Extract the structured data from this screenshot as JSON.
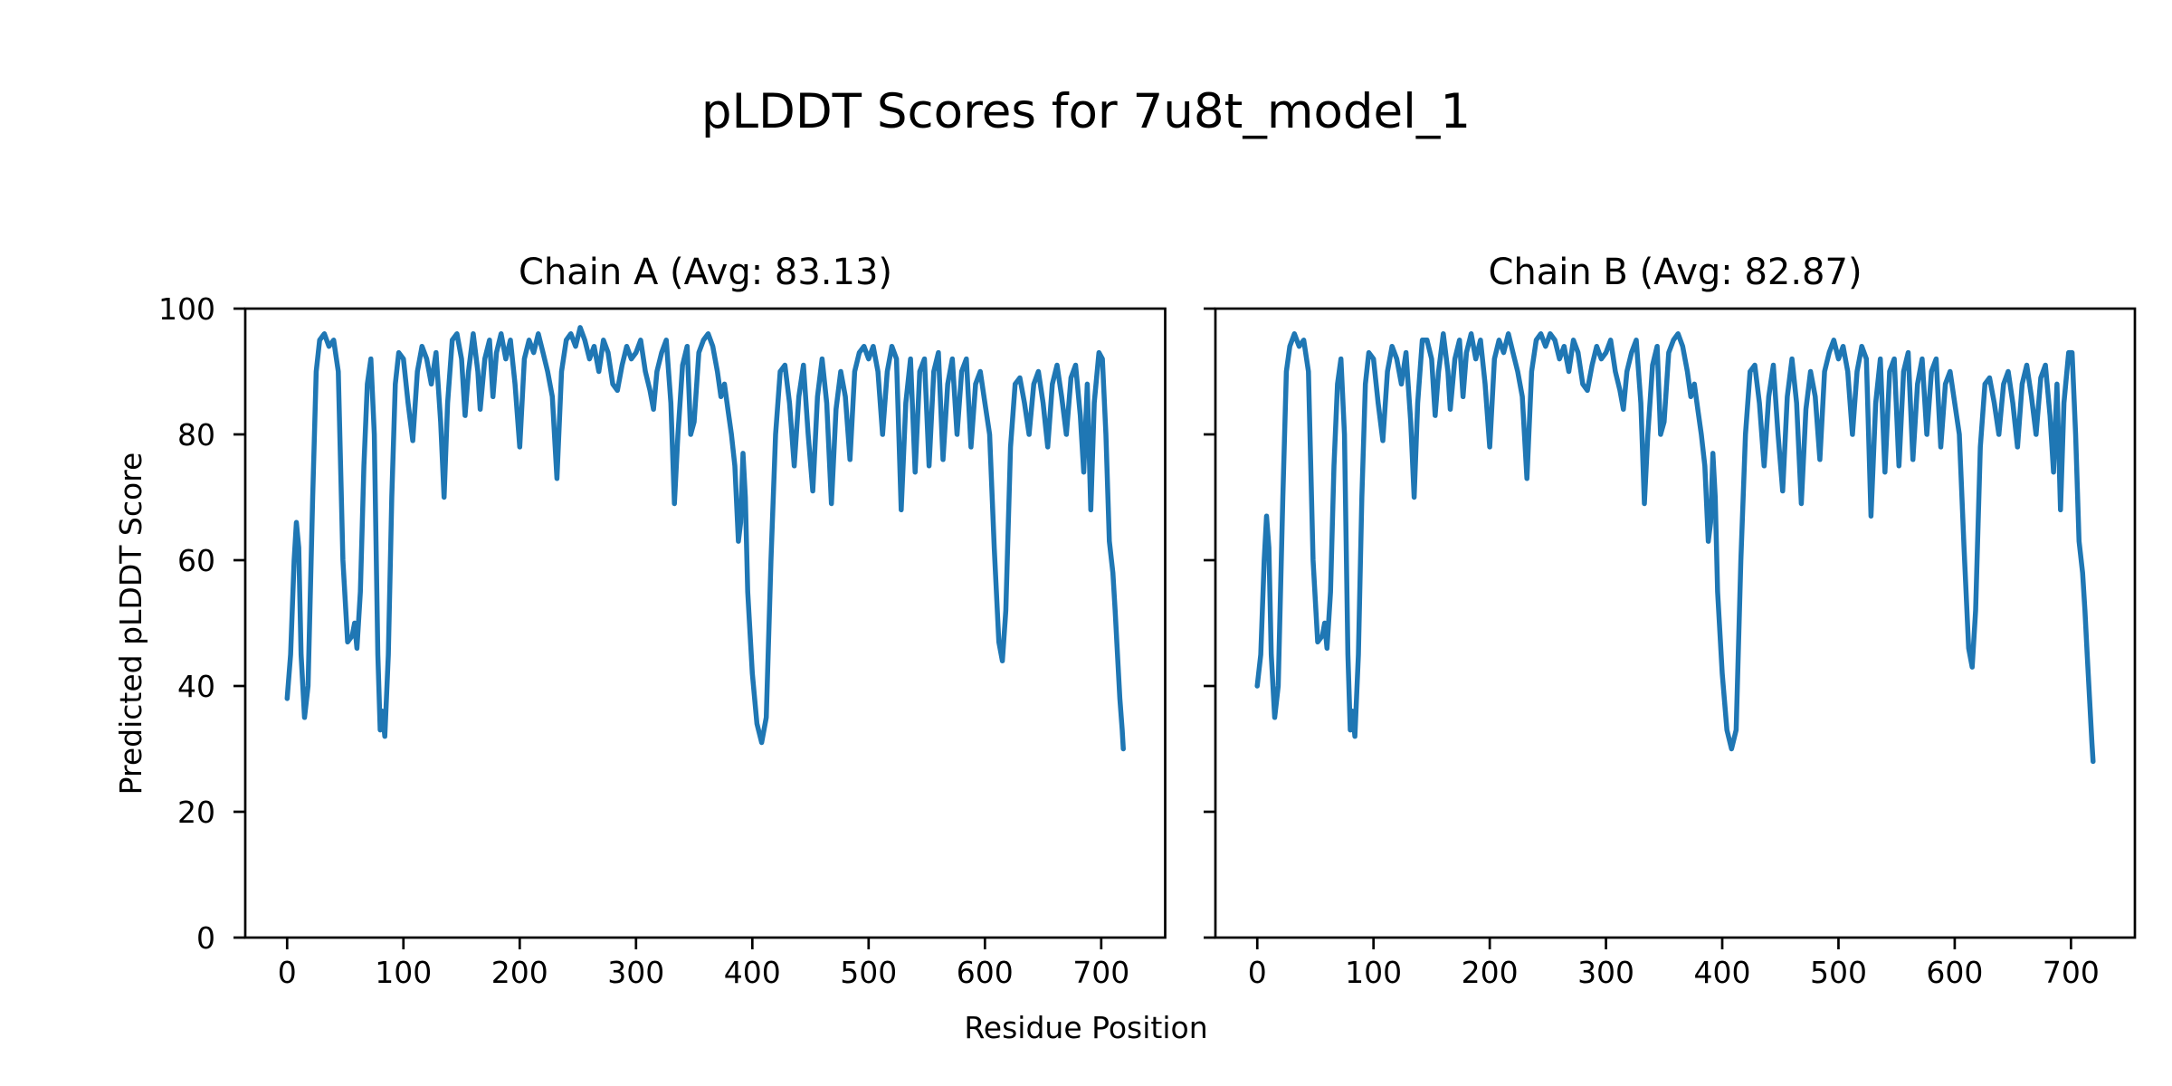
{
  "figure": {
    "title": "pLDDT Scores for 7u8t_model_1",
    "xlabel": "Residue Position",
    "ylabel": "Predicted pLDDT Score",
    "background_color": "#ffffff",
    "text_color": "#000000",
    "spine_color": "#000000"
  },
  "chart_data": [
    {
      "type": "line",
      "title": "Chain A (Avg: 83.13)",
      "chain": "A",
      "avg": 83.13,
      "xlabel": "Residue Position",
      "ylabel": "Predicted pLDDT Score",
      "xlim": [
        -36,
        755
      ],
      "ylim": [
        0,
        100
      ],
      "xticks": [
        0,
        100,
        200,
        300,
        400,
        500,
        600,
        700
      ],
      "yticks": [
        0,
        20,
        40,
        60,
        80,
        100
      ],
      "show_ytick_labels": true,
      "grid": false,
      "legend": "none",
      "line_color": "#1f77b4",
      "series": [
        {
          "name": "pLDDT",
          "x": [
            0,
            3,
            6,
            8,
            10,
            12,
            15,
            18,
            22,
            25,
            28,
            32,
            36,
            40,
            44,
            48,
            52,
            56,
            58,
            60,
            63,
            66,
            69,
            72,
            75,
            78,
            80,
            82,
            84,
            87,
            90,
            93,
            96,
            100,
            104,
            108,
            112,
            116,
            120,
            124,
            128,
            132,
            135,
            138,
            142,
            146,
            150,
            153,
            156,
            160,
            164,
            166,
            170,
            174,
            177,
            180,
            184,
            188,
            192,
            196,
            200,
            204,
            208,
            212,
            216,
            220,
            224,
            228,
            232,
            236,
            240,
            244,
            248,
            252,
            256,
            260,
            264,
            268,
            272,
            276,
            280,
            284,
            288,
            292,
            296,
            300,
            304,
            308,
            312,
            315,
            318,
            322,
            326,
            330,
            333,
            336,
            340,
            344,
            347,
            350,
            354,
            358,
            362,
            366,
            370,
            373,
            376,
            379,
            382,
            385,
            388,
            390,
            392,
            394,
            396,
            400,
            404,
            408,
            412,
            416,
            420,
            424,
            428,
            432,
            436,
            440,
            444,
            448,
            452,
            456,
            460,
            464,
            468,
            472,
            476,
            480,
            484,
            488,
            492,
            496,
            500,
            504,
            508,
            512,
            516,
            520,
            524,
            528,
            532,
            536,
            540,
            544,
            548,
            552,
            556,
            560,
            564,
            568,
            572,
            576,
            580,
            584,
            588,
            592,
            596,
            600,
            604,
            608,
            612,
            615,
            618,
            622,
            626,
            630,
            634,
            638,
            642,
            646,
            650,
            654,
            658,
            662,
            666,
            670,
            674,
            678,
            682,
            685,
            688,
            691,
            694,
            698,
            701,
            704,
            707,
            710,
            712,
            714,
            716,
            718,
            719
          ],
          "y": [
            38,
            45,
            60,
            66,
            62,
            45,
            35,
            40,
            70,
            90,
            95,
            96,
            94,
            95,
            90,
            60,
            47,
            48,
            50,
            46,
            55,
            75,
            88,
            92,
            80,
            45,
            33,
            36,
            32,
            45,
            70,
            88,
            93,
            92,
            85,
            79,
            90,
            94,
            92,
            88,
            93,
            82,
            70,
            85,
            95,
            96,
            92,
            83,
            90,
            96,
            90,
            84,
            92,
            95,
            86,
            93,
            96,
            92,
            95,
            88,
            78,
            92,
            95,
            93,
            96,
            93,
            90,
            86,
            73,
            90,
            95,
            96,
            94,
            97,
            95,
            92,
            94,
            90,
            95,
            93,
            88,
            87,
            91,
            94,
            92,
            93,
            95,
            90,
            87,
            84,
            90,
            93,
            95,
            85,
            69,
            80,
            91,
            94,
            80,
            82,
            93,
            95,
            96,
            94,
            90,
            86,
            88,
            84,
            80,
            75,
            63,
            66,
            77,
            70,
            55,
            42,
            34,
            31,
            35,
            60,
            80,
            90,
            91,
            85,
            75,
            86,
            91,
            80,
            71,
            86,
            92,
            85,
            69,
            84,
            90,
            86,
            76,
            90,
            93,
            94,
            92,
            94,
            90,
            80,
            90,
            94,
            92,
            68,
            85,
            92,
            74,
            90,
            92,
            75,
            90,
            93,
            76,
            88,
            92,
            80,
            90,
            92,
            78,
            88,
            90,
            85,
            80,
            62,
            47,
            44,
            52,
            78,
            88,
            89,
            85,
            80,
            88,
            90,
            85,
            78,
            88,
            91,
            86,
            80,
            89,
            91,
            83,
            74,
            88,
            68,
            85,
            93,
            92,
            80,
            63,
            58,
            52,
            45,
            38,
            33,
            30
          ]
        }
      ]
    },
    {
      "type": "line",
      "title": "Chain B (Avg: 82.87)",
      "chain": "B",
      "avg": 82.87,
      "xlabel": "Residue Position",
      "ylabel": "",
      "xlim": [
        -36,
        755
      ],
      "ylim": [
        0,
        100
      ],
      "xticks": [
        0,
        100,
        200,
        300,
        400,
        500,
        600,
        700
      ],
      "yticks": [
        0,
        20,
        40,
        60,
        80,
        100
      ],
      "show_ytick_labels": false,
      "grid": false,
      "legend": "none",
      "line_color": "#1f77b4",
      "series": [
        {
          "name": "pLDDT",
          "x": [
            0,
            3,
            6,
            8,
            10,
            12,
            15,
            18,
            22,
            25,
            28,
            32,
            36,
            40,
            44,
            48,
            52,
            56,
            58,
            60,
            63,
            66,
            69,
            72,
            75,
            78,
            80,
            82,
            84,
            87,
            90,
            93,
            96,
            100,
            104,
            108,
            112,
            116,
            120,
            124,
            128,
            132,
            135,
            138,
            142,
            146,
            150,
            153,
            156,
            160,
            164,
            166,
            170,
            174,
            177,
            180,
            184,
            188,
            192,
            196,
            200,
            204,
            208,
            212,
            216,
            220,
            224,
            228,
            232,
            236,
            240,
            244,
            248,
            252,
            256,
            260,
            264,
            268,
            272,
            276,
            280,
            284,
            288,
            292,
            296,
            300,
            304,
            308,
            312,
            315,
            318,
            322,
            326,
            330,
            333,
            336,
            340,
            344,
            347,
            350,
            354,
            358,
            362,
            366,
            370,
            373,
            376,
            379,
            382,
            385,
            388,
            390,
            392,
            394,
            396,
            400,
            404,
            408,
            412,
            416,
            420,
            424,
            428,
            432,
            436,
            440,
            444,
            448,
            452,
            456,
            460,
            464,
            468,
            472,
            476,
            480,
            484,
            488,
            492,
            496,
            500,
            504,
            508,
            512,
            516,
            520,
            524,
            528,
            532,
            536,
            540,
            544,
            548,
            552,
            556,
            560,
            564,
            568,
            572,
            576,
            580,
            584,
            588,
            592,
            596,
            600,
            604,
            608,
            612,
            615,
            618,
            622,
            626,
            630,
            634,
            638,
            642,
            646,
            650,
            654,
            658,
            662,
            666,
            670,
            674,
            678,
            682,
            685,
            688,
            691,
            694,
            698,
            701,
            704,
            707,
            710,
            712,
            714,
            716,
            718,
            719
          ],
          "y": [
            40,
            45,
            60,
            67,
            62,
            45,
            35,
            40,
            70,
            90,
            94,
            96,
            94,
            95,
            90,
            60,
            47,
            48,
            50,
            46,
            55,
            75,
            88,
            92,
            80,
            45,
            33,
            36,
            32,
            45,
            70,
            88,
            93,
            92,
            85,
            79,
            90,
            94,
            92,
            88,
            93,
            82,
            70,
            85,
            95,
            95,
            92,
            83,
            90,
            96,
            90,
            84,
            92,
            95,
            86,
            93,
            96,
            92,
            95,
            88,
            78,
            92,
            95,
            93,
            96,
            93,
            90,
            86,
            73,
            90,
            95,
            96,
            94,
            96,
            95,
            92,
            94,
            90,
            95,
            93,
            88,
            87,
            91,
            94,
            92,
            93,
            95,
            90,
            87,
            84,
            90,
            93,
            95,
            85,
            69,
            80,
            91,
            94,
            80,
            82,
            93,
            95,
            96,
            94,
            90,
            86,
            88,
            84,
            80,
            75,
            63,
            66,
            77,
            70,
            55,
            42,
            33,
            30,
            33,
            60,
            80,
            90,
            91,
            85,
            75,
            86,
            91,
            80,
            71,
            86,
            92,
            85,
            69,
            84,
            90,
            86,
            76,
            90,
            93,
            95,
            92,
            94,
            90,
            80,
            90,
            94,
            92,
            67,
            85,
            92,
            74,
            90,
            92,
            75,
            90,
            93,
            76,
            88,
            92,
            80,
            90,
            92,
            78,
            88,
            90,
            85,
            80,
            62,
            46,
            43,
            52,
            78,
            88,
            89,
            85,
            80,
            88,
            90,
            85,
            78,
            88,
            91,
            86,
            80,
            89,
            91,
            83,
            74,
            88,
            68,
            85,
            93,
            93,
            80,
            63,
            58,
            52,
            45,
            38,
            31,
            28
          ]
        }
      ]
    }
  ]
}
